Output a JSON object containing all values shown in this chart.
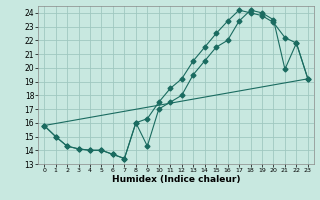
{
  "xlabel": "Humidex (Indice chaleur)",
  "xlim": [
    -0.5,
    23.5
  ],
  "ylim": [
    13,
    24.5
  ],
  "xticks": [
    0,
    1,
    2,
    3,
    4,
    5,
    6,
    7,
    8,
    9,
    10,
    11,
    12,
    13,
    14,
    15,
    16,
    17,
    18,
    19,
    20,
    21,
    22,
    23
  ],
  "yticks": [
    13,
    14,
    15,
    16,
    17,
    18,
    19,
    20,
    21,
    22,
    23,
    24
  ],
  "bg_color": "#c8e8e0",
  "grid_color": "#a0c8c0",
  "line_color": "#1a6b60",
  "line1_x": [
    0,
    1,
    2,
    3,
    4,
    5,
    6,
    7,
    8,
    9,
    10,
    11,
    12,
    13,
    14,
    15,
    16,
    17,
    18,
    19,
    20,
    21,
    22,
    23
  ],
  "line1_y": [
    15.8,
    15.0,
    14.3,
    14.1,
    14.0,
    14.0,
    13.7,
    13.4,
    16.0,
    14.3,
    17.0,
    17.5,
    18.0,
    19.5,
    20.5,
    21.5,
    22.0,
    23.4,
    24.2,
    24.0,
    23.5,
    19.9,
    21.8,
    19.2
  ],
  "line2_x": [
    0,
    1,
    2,
    3,
    4,
    5,
    6,
    7,
    8,
    9,
    10,
    11,
    12,
    13,
    14,
    15,
    16,
    17,
    18,
    19,
    20,
    21,
    22,
    23
  ],
  "line2_y": [
    15.8,
    15.0,
    14.3,
    14.1,
    14.0,
    14.0,
    13.7,
    13.4,
    16.0,
    16.3,
    17.5,
    18.5,
    19.2,
    20.5,
    21.5,
    22.5,
    23.4,
    24.2,
    24.0,
    23.8,
    23.3,
    22.2,
    21.8,
    19.2
  ],
  "line3_x": [
    0,
    23
  ],
  "line3_y": [
    15.8,
    19.2
  ]
}
